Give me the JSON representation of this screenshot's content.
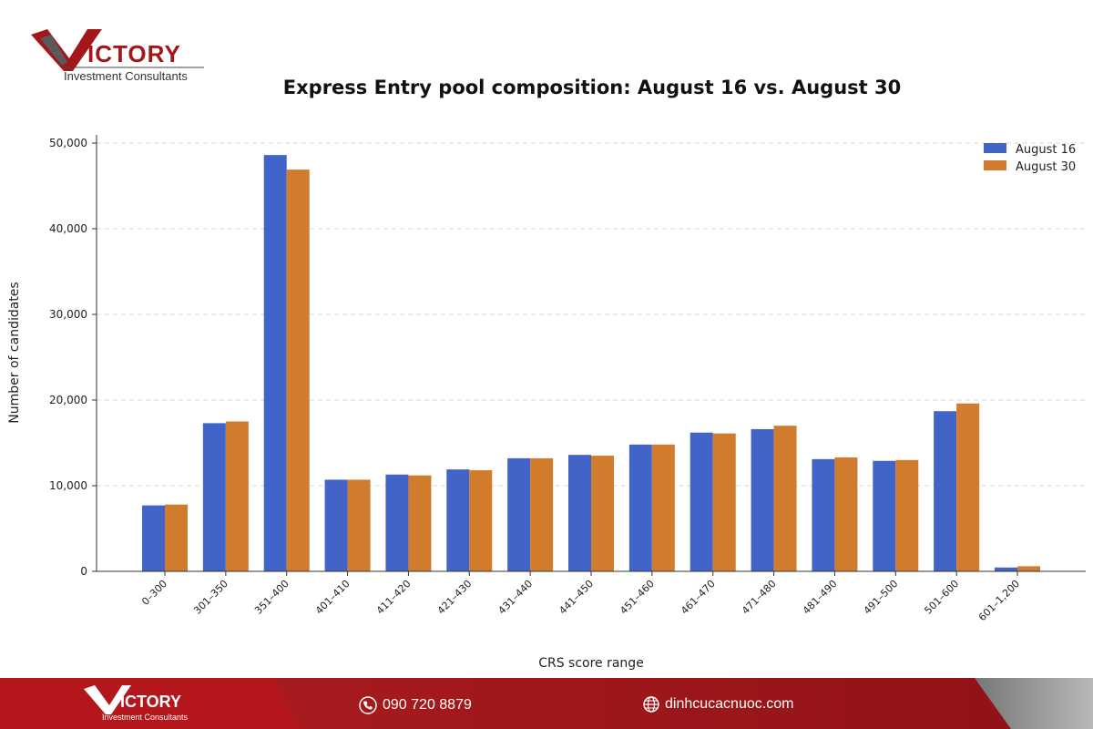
{
  "brand": {
    "name": "VICTORY",
    "tagline": "Investment Consultants"
  },
  "footer": {
    "phone": "090 720 8879",
    "website": "dinhcucacnuoc.com"
  },
  "colors": {
    "series1": "#4264c9",
    "series2": "#d17c2d",
    "brand_red": "#a3171b"
  },
  "chart_data": {
    "type": "bar",
    "title": "Express Entry pool composition: August 16 vs. August 30",
    "xlabel": "CRS score range",
    "ylabel": "Number of candidates",
    "ylim": [
      0,
      50000
    ],
    "yticks": [
      0,
      10000,
      20000,
      30000,
      40000,
      50000
    ],
    "ytick_labels": [
      "0",
      "10,000",
      "20,000",
      "30,000",
      "40,000",
      "50,000"
    ],
    "grid": "horizontal dashed",
    "legend": "top-right",
    "categories": [
      "0–300",
      "301–350",
      "351–400",
      "401–410",
      "411–420",
      "421–430",
      "431–440",
      "441–450",
      "451–460",
      "461–470",
      "471–480",
      "481–490",
      "491–500",
      "501–600",
      "601–1,200"
    ],
    "series": [
      {
        "name": "August 16",
        "values": [
          7700,
          17300,
          48600,
          10700,
          11300,
          11900,
          13200,
          13600,
          14800,
          16200,
          16600,
          13100,
          12900,
          18700,
          450
        ]
      },
      {
        "name": "August 30",
        "values": [
          7800,
          17500,
          46900,
          10700,
          11200,
          11800,
          13200,
          13500,
          14800,
          16100,
          17000,
          13300,
          13000,
          19600,
          600
        ]
      }
    ]
  }
}
